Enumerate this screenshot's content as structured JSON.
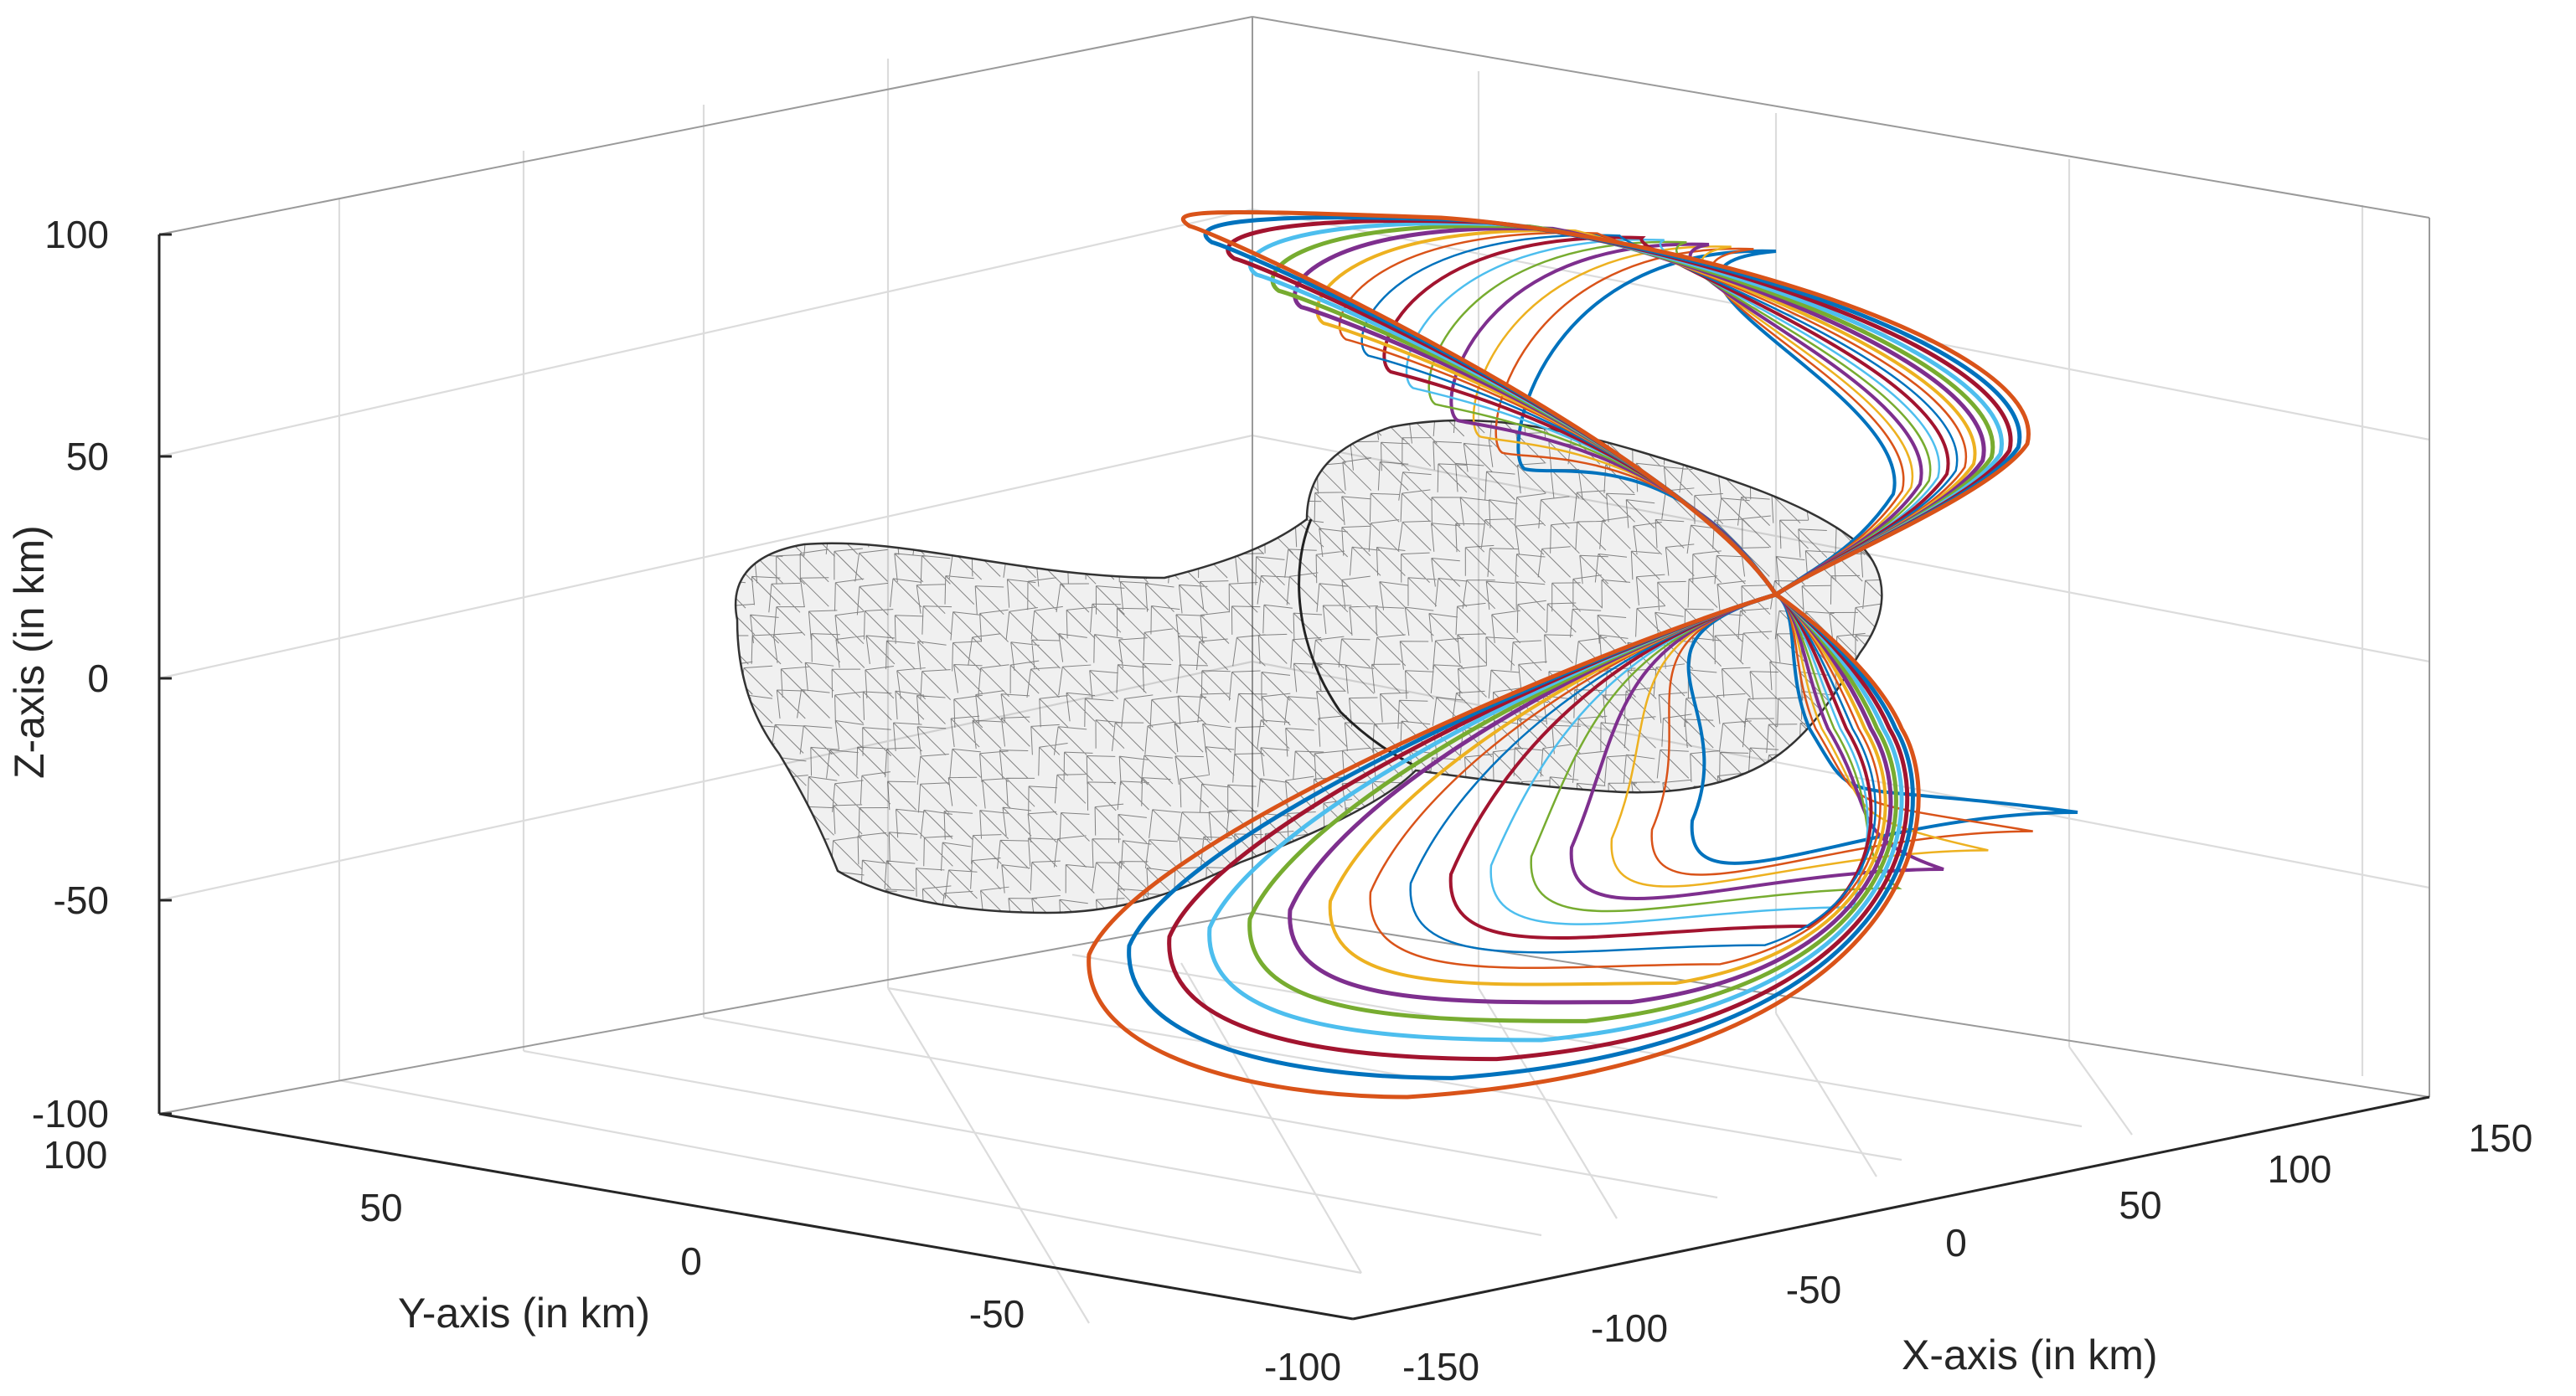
{
  "chart_data": {
    "type": "3d-line",
    "xlabel": "X-axis (in km)",
    "ylabel": "Y-axis (in km)",
    "zlabel": "Z-axis (in km)",
    "xlim": [
      -150,
      150
    ],
    "ylim": [
      -100,
      100
    ],
    "zlim": [
      -100,
      100
    ],
    "x_ticks": [
      "-150",
      "-100",
      "-50",
      "0",
      "50",
      "100",
      "150"
    ],
    "y_ticks": [
      "100",
      "50",
      "0",
      "-50",
      "-100"
    ],
    "z_ticks": [
      "100",
      "50",
      "0",
      "-50",
      "-100"
    ],
    "grid": true,
    "body": {
      "name": "asteroid shape model",
      "style": "wireframe triangular mesh",
      "color": "#000000"
    },
    "trajectories": {
      "count": 16,
      "description": "family of closed orbits forming an upper lobe (z up to ~100 km) and a lower lobe (z down to ~-95 km), crossing near the body end at x ~ 50 km",
      "colors": [
        "#0072BD",
        "#D95319",
        "#EDB120",
        "#7E2F8E",
        "#77AC30",
        "#4DBEEE",
        "#A2142F"
      ],
      "upper_lobe_z_max": 100,
      "lower_lobe_z_min": -95
    }
  }
}
